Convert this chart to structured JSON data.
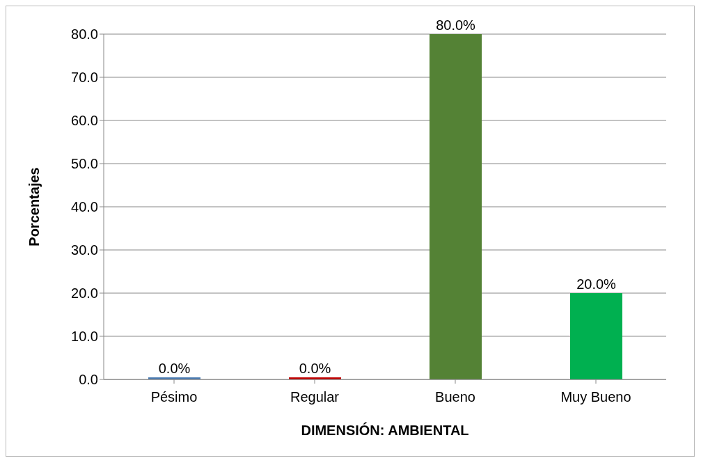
{
  "chart_data": {
    "type": "bar",
    "xlabel": "DIMENSIÓN: AMBIENTAL",
    "ylabel": "Porcentajes",
    "categories": [
      "Pésimo",
      "Regular",
      "Bueno",
      "Muy Bueno"
    ],
    "values": [
      0,
      0,
      80,
      20
    ],
    "colors": [
      "#4a7ab0",
      "#c00000",
      "#548235",
      "#00b050"
    ],
    "value_labels": [
      "0.0%",
      "0.0%",
      "80.0%",
      "20.0%"
    ],
    "ylim": [
      0,
      80
    ],
    "yticks": [
      {
        "value": 0,
        "label": "0.0"
      },
      {
        "value": 10,
        "label": "10.0"
      },
      {
        "value": 20,
        "label": "20.0"
      },
      {
        "value": 30,
        "label": "30.0"
      },
      {
        "value": 40,
        "label": "40.0"
      },
      {
        "value": 50,
        "label": "50.0"
      },
      {
        "value": 60,
        "label": "60.0"
      },
      {
        "value": 70,
        "label": "70.0"
      },
      {
        "value": 80,
        "label": "80.0"
      }
    ],
    "grid": "y",
    "legend": false
  }
}
